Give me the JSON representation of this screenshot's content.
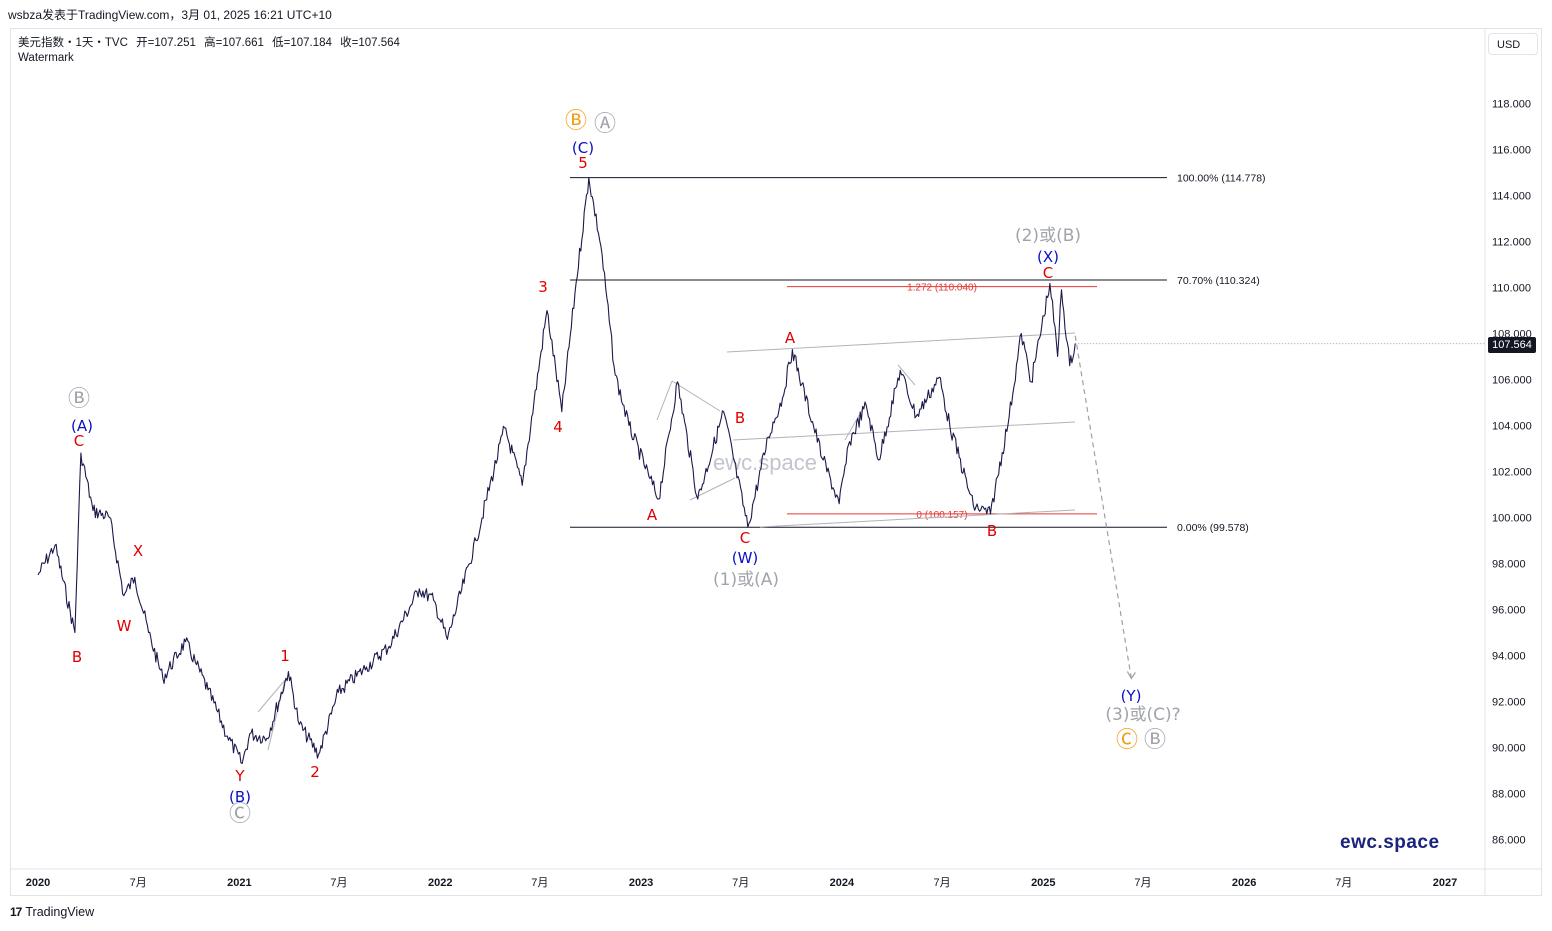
{
  "header": {
    "publisher": "wsbza发表于TradingView.com，3月 01, 2025 16:21 UTC+10"
  },
  "symbol": {
    "name": "美元指数・1天・TVC",
    "open": "开=107.251",
    "high": "高=107.661",
    "low": "低=107.184",
    "close": "收=107.564",
    "watermark_label": "Watermark"
  },
  "currency_button": "USD",
  "last_price": "107.564",
  "brand_text": "ewc.space",
  "center_watermark": "ewc.space",
  "footer": {
    "logo": "17",
    "label": "TradingView"
  },
  "colors": {
    "price_line": "#1b1a4a",
    "wave_red": "#e00000",
    "wave_blue": "#0a0fc8",
    "wave_gray": "#a0a3ab",
    "wave_orange": "#f39c12",
    "fib_red": "#e53935",
    "trend_gray": "#b0b3ba"
  },
  "chart_data": {
    "type": "line",
    "title": "美元指数・1天・TVC",
    "ylabel": "USD",
    "ylim": [
      85,
      120
    ],
    "y_ticks": [
      "86.000",
      "88.000",
      "90.000",
      "92.000",
      "94.000",
      "96.000",
      "98.000",
      "100.000",
      "102.000",
      "104.000",
      "106.000",
      "108.000",
      "110.000",
      "112.000",
      "114.000",
      "116.000",
      "118.000"
    ],
    "x_ticks": [
      "2020",
      "7月",
      "2021",
      "7月",
      "2022",
      "7月",
      "2023",
      "7月",
      "2024",
      "7月",
      "2025",
      "7月",
      "2026",
      "7月",
      "2027"
    ],
    "series": [
      {
        "points": [
          [
            "2020-01-01",
            97.5
          ],
          [
            "2020-02-01",
            98.8
          ],
          [
            "2020-03-08",
            95.0
          ],
          [
            "2020-03-19",
            102.8
          ],
          [
            "2020-04-10",
            100.3
          ],
          [
            "2020-05-10",
            100.0
          ],
          [
            "2020-06-05",
            96.6
          ],
          [
            "2020-06-25",
            97.4
          ],
          [
            "2020-07-20",
            95.0
          ],
          [
            "2020-08-15",
            93.0
          ],
          [
            "2020-09-25",
            94.6
          ],
          [
            "2020-10-15",
            93.6
          ],
          [
            "2020-11-05",
            92.5
          ],
          [
            "2020-12-10",
            90.5
          ],
          [
            "2021-01-06",
            89.3
          ],
          [
            "2021-01-20",
            90.6
          ],
          [
            "2021-02-20",
            90.4
          ],
          [
            "2021-03-31",
            93.3
          ],
          [
            "2021-04-20",
            91.0
          ],
          [
            "2021-05-25",
            89.7
          ],
          [
            "2021-06-30",
            92.4
          ],
          [
            "2021-08-20",
            93.5
          ],
          [
            "2021-09-30",
            94.4
          ],
          [
            "2021-11-24",
            96.9
          ],
          [
            "2021-12-20",
            96.4
          ],
          [
            "2022-01-14",
            94.7
          ],
          [
            "2022-03-07",
            99.0
          ],
          [
            "2022-04-28",
            103.9
          ],
          [
            "2022-05-30",
            101.4
          ],
          [
            "2022-07-14",
            109.0
          ],
          [
            "2022-08-10",
            104.6
          ],
          [
            "2022-09-05",
            110.2
          ],
          [
            "2022-09-28",
            114.78
          ],
          [
            "2022-10-20",
            111.8
          ],
          [
            "2022-11-15",
            106.2
          ],
          [
            "2022-12-10",
            104.0
          ],
          [
            "2023-01-15",
            101.8
          ],
          [
            "2023-02-02",
            100.8
          ],
          [
            "2023-03-08",
            105.9
          ],
          [
            "2023-04-14",
            100.8
          ],
          [
            "2023-05-31",
            104.6
          ],
          [
            "2023-07-14",
            99.58
          ],
          [
            "2023-08-20",
            103.5
          ],
          [
            "2023-09-15",
            105.2
          ],
          [
            "2023-10-03",
            107.3
          ],
          [
            "2023-10-20",
            105.8
          ],
          [
            "2023-11-28",
            102.5
          ],
          [
            "2023-12-27",
            100.6
          ],
          [
            "2024-01-15",
            103.3
          ],
          [
            "2024-02-14",
            104.9
          ],
          [
            "2024-03-08",
            102.5
          ],
          [
            "2024-04-16",
            106.4
          ],
          [
            "2024-05-15",
            104.4
          ],
          [
            "2024-06-26",
            106.1
          ],
          [
            "2024-07-15",
            104.0
          ],
          [
            "2024-08-27",
            100.5
          ],
          [
            "2024-09-27",
            100.16
          ],
          [
            "2024-10-31",
            104.4
          ],
          [
            "2024-11-22",
            108.0
          ],
          [
            "2024-12-10",
            105.9
          ],
          [
            "2025-01-13",
            110.18
          ],
          [
            "2025-01-27",
            107.0
          ],
          [
            "2025-02-03",
            109.9
          ],
          [
            "2025-02-18",
            106.6
          ],
          [
            "2025-02-28",
            107.56
          ]
        ]
      }
    ],
    "fib_levels": [
      {
        "label": "100.00% (114.778)",
        "value": 114.778
      },
      {
        "label": "70.70% (110.324)",
        "value": 110.324
      },
      {
        "label": "0.00% (99.578)",
        "value": 99.578
      }
    ],
    "fib_extension": [
      {
        "label": "1.272 (110.040)",
        "value": 110.04
      },
      {
        "label": "0 (100.157)",
        "value": 100.157
      }
    ],
    "wave_labels": [
      {
        "text": "Ⓑ",
        "color": "gray"
      },
      {
        "text": "(A)",
        "color": "blue"
      },
      {
        "text": "C",
        "color": "red"
      },
      {
        "text": "B",
        "color": "red"
      },
      {
        "text": "W",
        "color": "red"
      },
      {
        "text": "X",
        "color": "red"
      },
      {
        "text": "Y",
        "color": "red"
      },
      {
        "text": "(B)",
        "color": "blue"
      },
      {
        "text": "Ⓒ",
        "color": "gray"
      },
      {
        "text": "1",
        "color": "red"
      },
      {
        "text": "2",
        "color": "red"
      },
      {
        "text": "3",
        "color": "red"
      },
      {
        "text": "4",
        "color": "red"
      },
      {
        "text": "5",
        "color": "red"
      },
      {
        "text": "(C)",
        "color": "blue"
      },
      {
        "text": "Ⓑ",
        "color": "orange"
      },
      {
        "text": "Ⓐ",
        "color": "gray"
      },
      {
        "text": "A",
        "color": "red"
      },
      {
        "text": "B",
        "color": "red"
      },
      {
        "text": "C",
        "color": "red"
      },
      {
        "text": "(W)",
        "color": "blue"
      },
      {
        "text": "(1)或(A)",
        "color": "gray"
      },
      {
        "text": "A",
        "color": "red"
      },
      {
        "text": "B",
        "color": "red"
      },
      {
        "text": "C",
        "color": "red"
      },
      {
        "text": "(X)",
        "color": "blue"
      },
      {
        "text": "(2)或(B)",
        "color": "gray"
      },
      {
        "text": "(Y)",
        "color": "blue"
      },
      {
        "text": "(3)或(C)?",
        "color": "gray"
      },
      {
        "text": "Ⓒ",
        "color": "orange"
      },
      {
        "text": "Ⓑ",
        "color": "gray"
      }
    ],
    "projection": {
      "from": [
        "2025-02-28",
        107.9
      ],
      "to": [
        "2025-06-10",
        93.0
      ]
    },
    "grid": false,
    "legend": "none"
  }
}
